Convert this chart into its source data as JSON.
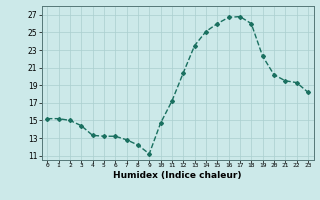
{
  "x": [
    0,
    1,
    2,
    3,
    4,
    5,
    6,
    7,
    8,
    9,
    10,
    11,
    12,
    13,
    14,
    15,
    16,
    17,
    18,
    19,
    20,
    21,
    22,
    23
  ],
  "y": [
    15.2,
    15.2,
    15.0,
    14.4,
    13.3,
    13.2,
    13.2,
    12.8,
    12.2,
    11.2,
    14.7,
    17.2,
    20.4,
    23.5,
    25.1,
    26.0,
    26.7,
    26.8,
    26.0,
    22.3,
    20.2,
    19.5,
    19.3,
    18.2
  ],
  "line_color": "#1a7060",
  "marker": "D",
  "marker_size": 2,
  "linewidth": 1.0,
  "xlabel": "Humidex (Indice chaleur)",
  "ylabel_ticks": [
    11,
    13,
    15,
    17,
    19,
    21,
    23,
    25,
    27
  ],
  "xtick_labels": [
    "0",
    "1",
    "2",
    "3",
    "4",
    "5",
    "6",
    "7",
    "8",
    "9",
    "10",
    "11",
    "12",
    "13",
    "14",
    "15",
    "16",
    "17",
    "18",
    "19",
    "20",
    "21",
    "22",
    "23"
  ],
  "xlim": [
    -0.5,
    23.5
  ],
  "ylim": [
    10.5,
    28.0
  ],
  "bg_color": "#cce9e9",
  "grid_color": "#aacfcf",
  "title": ""
}
